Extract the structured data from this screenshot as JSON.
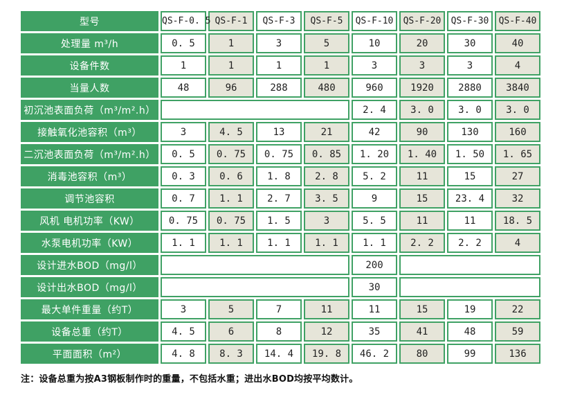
{
  "colors": {
    "green": "#3fa164",
    "cell_tint": "#e6e5d9",
    "value_text": "#1f1f1f",
    "label_text": "#ffffff"
  },
  "table": {
    "header": {
      "label": "型号",
      "models": [
        "QS-F-0. 5",
        "QS-F-1",
        "QS-F-3",
        "QS-F-5",
        "QS-F-10",
        "QS-F-20",
        "QS-F-30",
        "QS-F-40"
      ]
    },
    "rows": [
      {
        "label": "处理量 m³/h",
        "cells": [
          {
            "text": "0. 5"
          },
          {
            "text": "1"
          },
          {
            "text": "3"
          },
          {
            "text": "5"
          },
          {
            "text": "10"
          },
          {
            "text": "20"
          },
          {
            "text": "30"
          },
          {
            "text": "40"
          }
        ]
      },
      {
        "label": "设备件数",
        "cells": [
          {
            "text": "1"
          },
          {
            "text": "1"
          },
          {
            "text": "1"
          },
          {
            "text": "1"
          },
          {
            "text": "3"
          },
          {
            "text": "3"
          },
          {
            "text": "3"
          },
          {
            "text": "4"
          }
        ]
      },
      {
        "label": "当量人数",
        "cells": [
          {
            "text": "48"
          },
          {
            "text": "96"
          },
          {
            "text": "288"
          },
          {
            "text": "480"
          },
          {
            "text": "960"
          },
          {
            "text": "1920"
          },
          {
            "text": "2880"
          },
          {
            "text": "3840"
          }
        ]
      },
      {
        "label": "初沉池表面负荷（m³/m².h）",
        "cells": [
          {
            "text": "",
            "span": 4
          },
          {
            "text": "2. 4"
          },
          {
            "text": "3. 0"
          },
          {
            "text": "3. 0"
          },
          {
            "text": "3. 0"
          }
        ]
      },
      {
        "label": "接触氧化池容积（m³）",
        "cells": [
          {
            "text": "3"
          },
          {
            "text": "4. 5"
          },
          {
            "text": "13"
          },
          {
            "text": "21"
          },
          {
            "text": "42"
          },
          {
            "text": "90"
          },
          {
            "text": "130"
          },
          {
            "text": "160"
          }
        ]
      },
      {
        "label": "二沉池表面负荷（m³/m².h）",
        "cells": [
          {
            "text": "0. 5"
          },
          {
            "text": "0. 75"
          },
          {
            "text": "0. 75"
          },
          {
            "text": "0. 85"
          },
          {
            "text": "1. 20"
          },
          {
            "text": "1. 40"
          },
          {
            "text": "1. 50"
          },
          {
            "text": "1. 65"
          }
        ]
      },
      {
        "label": "消毒池容积（m³）",
        "cells": [
          {
            "text": "0. 3"
          },
          {
            "text": "0. 6"
          },
          {
            "text": "1. 8"
          },
          {
            "text": "2. 8"
          },
          {
            "text": "5. 2"
          },
          {
            "text": "11"
          },
          {
            "text": "15"
          },
          {
            "text": "27"
          }
        ]
      },
      {
        "label": "调节池容积",
        "cells": [
          {
            "text": "0. 7"
          },
          {
            "text": "1. 1"
          },
          {
            "text": "2. 7"
          },
          {
            "text": "3. 5"
          },
          {
            "text": "9"
          },
          {
            "text": "15"
          },
          {
            "text": "23. 4"
          },
          {
            "text": "32"
          }
        ]
      },
      {
        "label": "风机 电机功率（KW）",
        "cells": [
          {
            "text": "0. 75"
          },
          {
            "text": "0. 75"
          },
          {
            "text": "1. 5"
          },
          {
            "text": "3"
          },
          {
            "text": "5. 5"
          },
          {
            "text": "11"
          },
          {
            "text": "11"
          },
          {
            "text": "18. 5"
          }
        ]
      },
      {
        "label": "水泵电机功率（KW）",
        "cells": [
          {
            "text": "1. 1"
          },
          {
            "text": "1. 1"
          },
          {
            "text": "1. 1"
          },
          {
            "text": "1. 1"
          },
          {
            "text": "1. 1"
          },
          {
            "text": "2. 2"
          },
          {
            "text": "2. 2"
          },
          {
            "text": "4"
          }
        ]
      },
      {
        "label": "设计进水BOD（mg/l）",
        "cells": [
          {
            "text": "",
            "span": 4
          },
          {
            "text": "200"
          },
          {
            "text": "",
            "span": 3
          }
        ]
      },
      {
        "label": "设计出水BOD（mg/l）",
        "cells": [
          {
            "text": "",
            "span": 4
          },
          {
            "text": "30"
          },
          {
            "text": "",
            "span": 3
          }
        ]
      },
      {
        "label": "最大单件重量（约T）",
        "cells": [
          {
            "text": "3"
          },
          {
            "text": "5"
          },
          {
            "text": "7"
          },
          {
            "text": "11"
          },
          {
            "text": "11"
          },
          {
            "text": "15"
          },
          {
            "text": "19"
          },
          {
            "text": "22"
          }
        ]
      },
      {
        "label": "设备总重（约T）",
        "cells": [
          {
            "text": "4. 5"
          },
          {
            "text": "6"
          },
          {
            "text": "8"
          },
          {
            "text": "12"
          },
          {
            "text": "35"
          },
          {
            "text": "41"
          },
          {
            "text": "48"
          },
          {
            "text": "59"
          }
        ]
      },
      {
        "label": "平面面积（m²）",
        "cells": [
          {
            "text": "4. 8"
          },
          {
            "text": "8. 3"
          },
          {
            "text": "14. 4"
          },
          {
            "text": "19. 8"
          },
          {
            "text": "46. 2"
          },
          {
            "text": "80"
          },
          {
            "text": "99"
          },
          {
            "text": "136"
          }
        ]
      }
    ]
  },
  "footnote": "注：设备总重为按A3钢板制作时的重量，不包括水重；进出水BOD均按平均数计。"
}
